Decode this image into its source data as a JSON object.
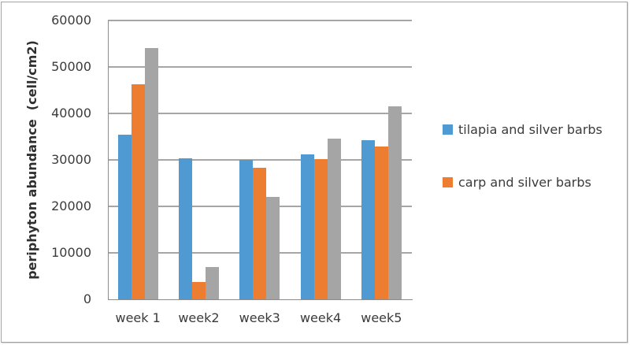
{
  "chart_data": {
    "type": "bar",
    "title": "",
    "xlabel": "",
    "ylabel": "periphyton abundance  (cell/cm2)",
    "categories": [
      "week 1",
      "week2",
      "week3",
      "week4",
      "week5"
    ],
    "series": [
      {
        "name": "tilapia and silver barbs",
        "color": "#4f9ad3",
        "values": [
          35400,
          30400,
          30000,
          31200,
          34200
        ],
        "in_legend": true
      },
      {
        "name": "carp and silver barbs",
        "color": "#ed7d31",
        "values": [
          46300,
          3800,
          28300,
          30100,
          32800
        ],
        "in_legend": true
      },
      {
        "name": "",
        "color": "#a5a5a5",
        "values": [
          54000,
          7000,
          22000,
          34600,
          41600
        ],
        "in_legend": false
      }
    ],
    "ylim": [
      0,
      60000
    ],
    "ytick_values": [
      0,
      10000,
      20000,
      30000,
      40000,
      50000,
      60000
    ],
    "yticks": [
      "0",
      "10000",
      "20000",
      "30000",
      "40000",
      "50000",
      "60000"
    ],
    "grid": true,
    "legend_position": "right",
    "legend_entries": [
      "tilapia and silver barbs",
      "carp and silver barbs"
    ]
  }
}
